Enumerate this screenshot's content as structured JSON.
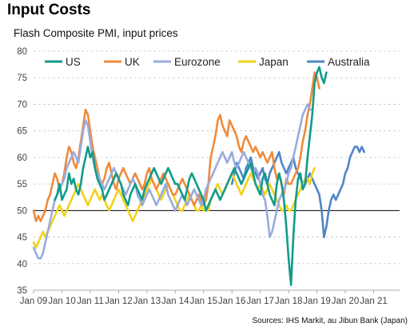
{
  "title": "Input Costs",
  "subtitle": "Flash Composite PMI, input prices",
  "source": "Sources: IHS Markit, au Jibun Bank (Japan)",
  "colors": {
    "US": "#119b8a",
    "UK": "#ef8a3a",
    "Eurozone": "#99abdd",
    "Japan": "#f2d21c",
    "Australia": "#4f86c6"
  },
  "chart_data": {
    "type": "line",
    "ylim": [
      35,
      80
    ],
    "yticks": [
      35,
      40,
      45,
      50,
      55,
      60,
      65,
      70,
      75,
      80
    ],
    "xtick_labels": [
      "Jan 09",
      "Jan 10",
      "Jan 11",
      "Jan 12",
      "Jan 13",
      "Jan 14",
      "Jan 15",
      "Jan 16",
      "Jan 17",
      "Jan 18",
      "Jan 19",
      "Jan 20",
      "Jan 21"
    ],
    "xrange": [
      2009.0,
      2021.917
    ],
    "reference_line": 50,
    "grid": true,
    "legend": "top",
    "series": [
      {
        "name": "US",
        "color": "#119b8a",
        "x_start": 2009.75,
        "values": [
          52,
          53,
          55,
          52,
          53,
          54,
          57,
          55,
          56,
          54,
          53,
          55,
          58,
          60,
          62,
          60,
          61,
          58,
          56,
          55,
          54,
          52,
          53,
          54,
          55,
          56,
          57,
          56,
          55,
          53,
          52,
          51,
          53,
          54,
          55,
          54,
          53,
          52,
          54,
          55,
          56,
          57,
          58,
          57,
          56,
          55,
          56,
          57,
          58,
          57,
          56,
          55,
          55,
          54,
          53,
          52,
          54,
          56,
          57,
          56,
          55,
          54,
          53,
          52,
          50,
          51,
          52,
          53,
          54,
          53,
          52,
          53,
          54,
          55,
          56,
          57,
          58,
          57,
          56,
          55,
          56,
          57,
          58,
          59,
          57,
          55,
          54,
          53,
          56,
          57,
          55,
          53,
          52,
          51,
          55,
          57,
          55,
          52,
          47,
          41,
          36,
          45,
          52,
          56,
          57,
          54,
          55,
          60,
          64,
          68,
          74,
          76,
          77,
          75,
          74,
          76
        ]
      },
      {
        "name": "UK",
        "color": "#ef8a3a",
        "x_start": 2009.0,
        "values": [
          50,
          48,
          49,
          48,
          49,
          50,
          52,
          53,
          55,
          57,
          56,
          54,
          55,
          57,
          60,
          62,
          61,
          59,
          58,
          60,
          63,
          66,
          69,
          68,
          65,
          62,
          60,
          58,
          56,
          55,
          56,
          58,
          59,
          57,
          55,
          54,
          56,
          57,
          58,
          57,
          56,
          55,
          56,
          57,
          56,
          55,
          54,
          55,
          57,
          58,
          56,
          55,
          54,
          55,
          56,
          57,
          56,
          55,
          54,
          53,
          53,
          54,
          55,
          56,
          55,
          54,
          53,
          52,
          51,
          52,
          53,
          52,
          51,
          52,
          55,
          60,
          62,
          64,
          67,
          68,
          66,
          65,
          64,
          67,
          66,
          65,
          64,
          62,
          61,
          63,
          64,
          63,
          62,
          61,
          62,
          61,
          60,
          61,
          60,
          59,
          60,
          61,
          58,
          56,
          57,
          55,
          53,
          56,
          55,
          55,
          56,
          57,
          58,
          60,
          63,
          65,
          68,
          70,
          73,
          76,
          75,
          73
        ]
      },
      {
        "name": "Eurozone",
        "color": "#99abdd",
        "x_start": 2009.0,
        "values": [
          43,
          42,
          41,
          41,
          42,
          44,
          46,
          48,
          50,
          52,
          53,
          54,
          55,
          56,
          58,
          59,
          60,
          61,
          60,
          59,
          62,
          65,
          67,
          66,
          63,
          60,
          58,
          57,
          56,
          55,
          54,
          55,
          56,
          57,
          58,
          57,
          56,
          55,
          54,
          53,
          54,
          55,
          56,
          55,
          53,
          52,
          51,
          52,
          53,
          54,
          53,
          52,
          51,
          52,
          53,
          54,
          55,
          53,
          52,
          51,
          50,
          51,
          52,
          53,
          52,
          51,
          52,
          53,
          54,
          53,
          52,
          51,
          52,
          54,
          55,
          56,
          57,
          58,
          59,
          60,
          61,
          60,
          59,
          60,
          61,
          59,
          58,
          59,
          60,
          61,
          60,
          59,
          58,
          57,
          58,
          57,
          55,
          53,
          52,
          49,
          45,
          46,
          48,
          50,
          52,
          53,
          54,
          55,
          57,
          58,
          60,
          62,
          64,
          66,
          68,
          69,
          70,
          69,
          69
        ]
      },
      {
        "name": "Japan",
        "color": "#f2d21c",
        "x_start": 2009.0,
        "values": [
          44,
          43,
          44,
          45,
          46,
          45,
          46,
          47,
          48,
          49,
          50,
          51,
          50,
          49,
          50,
          51,
          52,
          53,
          54,
          55,
          54,
          53,
          52,
          51,
          52,
          53,
          54,
          53,
          52,
          53,
          52,
          51,
          50,
          51,
          52,
          53,
          54,
          53,
          52,
          51,
          50,
          49,
          48,
          49,
          50,
          51,
          52,
          53,
          54,
          55,
          56,
          55,
          54,
          53,
          52,
          53,
          54,
          55,
          54,
          53,
          52,
          51,
          50,
          50,
          51,
          52,
          53,
          52,
          51,
          50,
          50,
          51,
          50,
          50,
          50,
          52,
          53,
          54,
          55,
          54,
          53,
          54,
          55,
          56,
          57,
          56,
          55,
          54,
          53,
          54,
          55,
          56,
          57,
          56,
          55,
          54,
          55,
          54,
          53,
          54,
          55,
          54,
          53,
          52,
          51,
          50,
          50,
          51,
          50,
          50,
          51,
          52,
          53,
          54,
          55,
          56,
          56,
          55,
          57,
          58
        ]
      },
      {
        "name": "Australia",
        "color": "#4f86c6",
        "x_start": 2016.0,
        "values": [
          55,
          57,
          59,
          58,
          57,
          56,
          58,
          59,
          60,
          58,
          57,
          56,
          57,
          58,
          56,
          55,
          57,
          58,
          59,
          60,
          61,
          59,
          58,
          57,
          58,
          59,
          60,
          58,
          57,
          56,
          55,
          55,
          56,
          57,
          56,
          55,
          54,
          53,
          50,
          45,
          47,
          50,
          52,
          53,
          52,
          53,
          54,
          55,
          57,
          58,
          60,
          61,
          62,
          62,
          61,
          62,
          61
        ]
      }
    ]
  }
}
